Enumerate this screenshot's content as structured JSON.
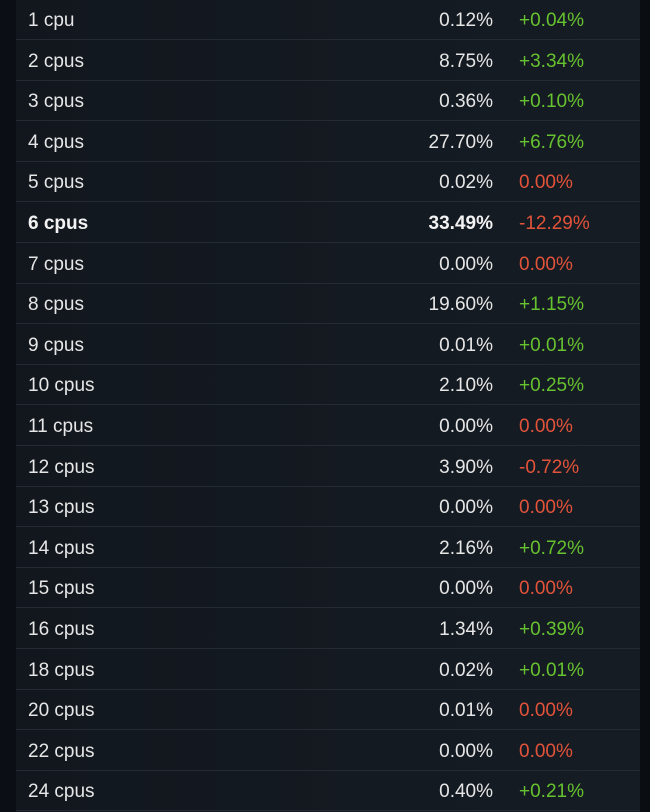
{
  "colors": {
    "background": "#0b0f15",
    "panel": "#141a21",
    "text": "#e6e6e6",
    "positive": "#66c22f",
    "negative": "#e2533a"
  },
  "rows": [
    {
      "name": "1 cpu",
      "percent": "0.12%",
      "change": "+0.04%",
      "trend": "up"
    },
    {
      "name": "2 cpus",
      "percent": "8.75%",
      "change": "+3.34%",
      "trend": "up"
    },
    {
      "name": "3 cpus",
      "percent": "0.36%",
      "change": "+0.10%",
      "trend": "up"
    },
    {
      "name": "4 cpus",
      "percent": "27.70%",
      "change": "+6.76%",
      "trend": "up"
    },
    {
      "name": "5 cpus",
      "percent": "0.02%",
      "change": "0.00%",
      "trend": "down"
    },
    {
      "name": "6 cpus",
      "percent": "33.49%",
      "change": "-12.29%",
      "trend": "down",
      "highlight": true
    },
    {
      "name": "7 cpus",
      "percent": "0.00%",
      "change": "0.00%",
      "trend": "down"
    },
    {
      "name": "8 cpus",
      "percent": "19.60%",
      "change": "+1.15%",
      "trend": "up"
    },
    {
      "name": "9 cpus",
      "percent": "0.01%",
      "change": "+0.01%",
      "trend": "up"
    },
    {
      "name": "10 cpus",
      "percent": "2.10%",
      "change": "+0.25%",
      "trend": "up"
    },
    {
      "name": "11 cpus",
      "percent": "0.00%",
      "change": "0.00%",
      "trend": "down"
    },
    {
      "name": "12 cpus",
      "percent": "3.90%",
      "change": "-0.72%",
      "trend": "down"
    },
    {
      "name": "13 cpus",
      "percent": "0.00%",
      "change": "0.00%",
      "trend": "down"
    },
    {
      "name": "14 cpus",
      "percent": "2.16%",
      "change": "+0.72%",
      "trend": "up"
    },
    {
      "name": "15 cpus",
      "percent": "0.00%",
      "change": "0.00%",
      "trend": "down"
    },
    {
      "name": "16 cpus",
      "percent": "1.34%",
      "change": "+0.39%",
      "trend": "up"
    },
    {
      "name": "18 cpus",
      "percent": "0.02%",
      "change": "+0.01%",
      "trend": "up"
    },
    {
      "name": "20 cpus",
      "percent": "0.01%",
      "change": "0.00%",
      "trend": "down"
    },
    {
      "name": "22 cpus",
      "percent": "0.00%",
      "change": "0.00%",
      "trend": "down"
    },
    {
      "name": "24 cpus",
      "percent": "0.40%",
      "change": "+0.21%",
      "trend": "up"
    }
  ]
}
